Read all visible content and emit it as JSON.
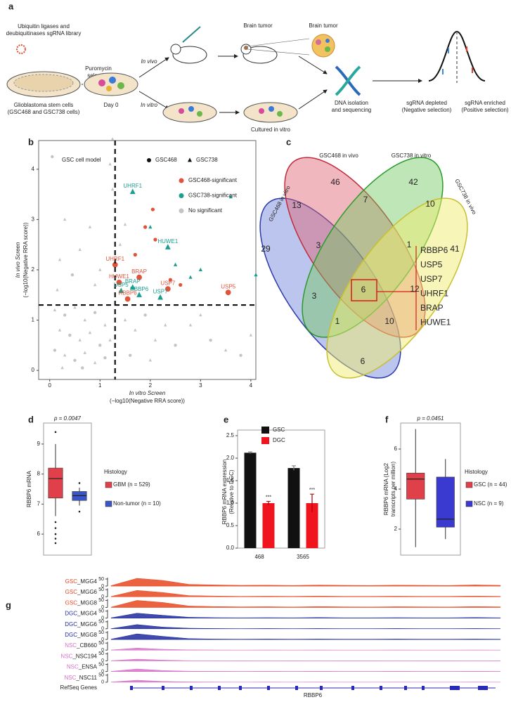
{
  "panel_labels": [
    "a",
    "b",
    "c",
    "d",
    "e",
    "f",
    "g"
  ],
  "a": {
    "library": [
      "Ubiquitin ligases and",
      "deubiquitinases sgRNA library"
    ],
    "cells": [
      "Glioblastoma stem cells",
      "(GSC468 and GSC738 cells)"
    ],
    "puromycin": [
      "Puromycin",
      "selection"
    ],
    "day0": "Day 0",
    "invivo": "In vivo",
    "invitro": "In vitro",
    "tumor1": "Brain tumor",
    "tumor2": "Brain tumor",
    "cultured": "Cultured in vitro",
    "dna": [
      "DNA isolation",
      "and sequencing"
    ],
    "depleted": [
      "sgRNA depleted",
      "(Negative selection)"
    ],
    "enriched": [
      "sgRNA enriched",
      "(Positive selection)"
    ]
  },
  "b": {
    "type": "scatter",
    "legend_title": "GSC cell model",
    "markers": [
      {
        "name": "GSC468",
        "shape": "circle"
      },
      {
        "name": "GSC738",
        "shape": "triangle"
      }
    ],
    "classes": [
      {
        "name": "GSC468-significant",
        "color": "#e0533a"
      },
      {
        "name": "GSC738-significant",
        "color": "#1a9e8f"
      },
      {
        "name": "No significant",
        "color": "#c4c4c4"
      }
    ],
    "xlabel": [
      "In vitro Screen",
      "(−log10(Negative RRA score))"
    ],
    "ylabel": [
      "In vivo Screen",
      "(−log10(Negative RRA score))"
    ],
    "xlim": [
      -0.22,
      4.1
    ],
    "ylim": [
      -0.18,
      4.57
    ],
    "xticks": [
      0,
      1,
      2,
      3,
      4
    ],
    "yticks": [
      0,
      1,
      2,
      3,
      4
    ],
    "threshold": 1.3,
    "points": [
      {
        "x": 1.65,
        "y": 3.55,
        "s": 1,
        "c": 1,
        "label": "UHRF1"
      },
      {
        "x": 2.35,
        "y": 2.45,
        "s": 1,
        "c": 1,
        "label": "HUWE1"
      },
      {
        "x": 1.3,
        "y": 2.1,
        "s": 0,
        "c": 0,
        "label": "UHRF1"
      },
      {
        "x": 1.38,
        "y": 1.75,
        "s": 0,
        "c": 0,
        "label": "HUWE1"
      },
      {
        "x": 1.78,
        "y": 1.85,
        "s": 0,
        "c": 0,
        "label": "BRAP"
      },
      {
        "x": 1.65,
        "y": 1.65,
        "s": 1,
        "c": 1,
        "label": "BRAP"
      },
      {
        "x": 1.42,
        "y": 1.58,
        "s": 1,
        "c": 1,
        "label": "USP5"
      },
      {
        "x": 1.78,
        "y": 1.5,
        "s": 1,
        "c": 1,
        "label": "RBBP6"
      },
      {
        "x": 2.35,
        "y": 1.62,
        "s": 0,
        "c": 0,
        "label": "USP7"
      },
      {
        "x": 3.55,
        "y": 1.55,
        "s": 0,
        "c": 0,
        "label": "USP5"
      },
      {
        "x": 1.55,
        "y": 1.42,
        "s": 0,
        "c": 0,
        "label": "RBBP6"
      },
      {
        "x": 2.2,
        "y": 1.45,
        "s": 1,
        "c": 1,
        "label": "USP7"
      },
      {
        "x": 1.9,
        "y": 2.85,
        "s": 0,
        "c": 0
      },
      {
        "x": 2.05,
        "y": 3.2,
        "s": 0,
        "c": 0
      },
      {
        "x": 1.7,
        "y": 2.3,
        "s": 0,
        "c": 0
      },
      {
        "x": 2.4,
        "y": 1.8,
        "s": 0,
        "c": 0
      },
      {
        "x": 2.6,
        "y": 1.7,
        "s": 0,
        "c": 0
      },
      {
        "x": 2.1,
        "y": 2.6,
        "s": 0,
        "c": 0
      },
      {
        "x": 3.6,
        "y": 3.45,
        "s": 1,
        "c": 1
      },
      {
        "x": 2.0,
        "y": 2.85,
        "s": 1,
        "c": 1
      },
      {
        "x": 2.5,
        "y": 2.1,
        "s": 1,
        "c": 1
      },
      {
        "x": 4.1,
        "y": 1.9,
        "s": 1,
        "c": 1
      },
      {
        "x": 3.0,
        "y": 2.0,
        "s": 1,
        "c": 1
      },
      {
        "x": 2.8,
        "y": 1.85,
        "s": 1,
        "c": 1
      },
      {
        "x": 0.05,
        "y": 4.25,
        "s": 0,
        "c": 2
      },
      {
        "x": 1.25,
        "y": 4.6,
        "s": 1,
        "c": 2
      },
      {
        "x": 1.2,
        "y": 4.1,
        "s": 1,
        "c": 2
      },
      {
        "x": 1.25,
        "y": 3.6,
        "s": 1,
        "c": 2
      },
      {
        "x": 0.3,
        "y": 3.0,
        "s": 1,
        "c": 2
      },
      {
        "x": 0.8,
        "y": 2.85,
        "s": 1,
        "c": 2
      },
      {
        "x": 0.6,
        "y": 2.4,
        "s": 1,
        "c": 2
      },
      {
        "x": 0.2,
        "y": 2.2,
        "s": 1,
        "c": 2
      },
      {
        "x": 1.0,
        "y": 2.0,
        "s": 1,
        "c": 2
      },
      {
        "x": 0.45,
        "y": 1.9,
        "s": 0,
        "c": 2
      },
      {
        "x": 0.9,
        "y": 1.7,
        "s": 1,
        "c": 2
      },
      {
        "x": 0.15,
        "y": 1.6,
        "s": 1,
        "c": 2
      },
      {
        "x": 0.1,
        "y": 1.2,
        "s": 1,
        "c": 2
      },
      {
        "x": 0.3,
        "y": 1.1,
        "s": 0,
        "c": 2
      },
      {
        "x": 0.5,
        "y": 1.25,
        "s": 1,
        "c": 2
      },
      {
        "x": 0.7,
        "y": 1.0,
        "s": 1,
        "c": 2
      },
      {
        "x": 0.9,
        "y": 1.15,
        "s": 0,
        "c": 2
      },
      {
        "x": 1.1,
        "y": 0.9,
        "s": 1,
        "c": 2
      },
      {
        "x": 0.2,
        "y": 0.8,
        "s": 1,
        "c": 2
      },
      {
        "x": 0.4,
        "y": 0.7,
        "s": 0,
        "c": 2
      },
      {
        "x": 0.6,
        "y": 0.6,
        "s": 1,
        "c": 2
      },
      {
        "x": 0.8,
        "y": 0.75,
        "s": 1,
        "c": 2
      },
      {
        "x": 1.0,
        "y": 0.5,
        "s": 0,
        "c": 2
      },
      {
        "x": 1.2,
        "y": 0.6,
        "s": 1,
        "c": 2
      },
      {
        "x": 0.1,
        "y": 0.4,
        "s": 0,
        "c": 2
      },
      {
        "x": 0.3,
        "y": 0.3,
        "s": 1,
        "c": 2
      },
      {
        "x": 0.5,
        "y": 0.2,
        "s": 0,
        "c": 2
      },
      {
        "x": 0.7,
        "y": 0.35,
        "s": 1,
        "c": 2
      },
      {
        "x": 0.9,
        "y": 0.15,
        "s": 1,
        "c": 2
      },
      {
        "x": 1.1,
        "y": 0.25,
        "s": 0,
        "c": 2
      },
      {
        "x": 0.25,
        "y": 0.05,
        "s": 1,
        "c": 2
      },
      {
        "x": 0.65,
        "y": 0.05,
        "s": 0,
        "c": 2
      },
      {
        "x": 1.5,
        "y": 1.0,
        "s": 1,
        "c": 2
      },
      {
        "x": 1.7,
        "y": 0.8,
        "s": 1,
        "c": 2
      },
      {
        "x": 1.9,
        "y": 1.1,
        "s": 0,
        "c": 2
      },
      {
        "x": 2.1,
        "y": 0.6,
        "s": 1,
        "c": 2
      },
      {
        "x": 2.3,
        "y": 0.9,
        "s": 1,
        "c": 2
      },
      {
        "x": 2.5,
        "y": 0.5,
        "s": 0,
        "c": 2
      },
      {
        "x": 2.8,
        "y": 0.9,
        "s": 1,
        "c": 2
      },
      {
        "x": 3.0,
        "y": 1.1,
        "s": 1,
        "c": 2
      },
      {
        "x": 3.2,
        "y": 0.6,
        "s": 0,
        "c": 2
      },
      {
        "x": 3.5,
        "y": 0.4,
        "s": 1,
        "c": 2
      },
      {
        "x": 3.8,
        "y": 0.3,
        "s": 0,
        "c": 2
      },
      {
        "x": 4.0,
        "y": 0.7,
        "s": 1,
        "c": 2
      },
      {
        "x": 1.6,
        "y": 0.3,
        "s": 0,
        "c": 2
      },
      {
        "x": 2.0,
        "y": 0.2,
        "s": 1,
        "c": 2
      },
      {
        "x": 1.4,
        "y": 2.5,
        "s": 1,
        "c": 2
      },
      {
        "x": 1.5,
        "y": 2.9,
        "s": 1,
        "c": 2
      }
    ]
  },
  "c": {
    "sets": [
      "GSC468 in vitro",
      "GSC468 in vivo",
      "GSC738 in vitro",
      "GSC738 in vivo"
    ],
    "counts": [
      46,
      42,
      13,
      7,
      10,
      29,
      3,
      1,
      41,
      3,
      6,
      12,
      1,
      10,
      6
    ],
    "genes": [
      "RBBP6",
      "USP5",
      "USP7",
      "UHRF1",
      "BRAP",
      "HUWE1"
    ]
  },
  "d": {
    "type": "box",
    "p": "p = 0.0047",
    "ylabel": "RBBP6 mRNA",
    "ylim": [
      5.3,
      9.7
    ],
    "yticks": [
      6,
      7,
      8,
      9
    ],
    "legend_title": "Histology",
    "boxes": [
      {
        "name": "GBM (n = 529)",
        "color": "#e0404a",
        "q1": 7.2,
        "median": 7.85,
        "q3": 8.2,
        "whisker_low": 6.6,
        "whisker_high": 9.0,
        "outliers": [
          9.4,
          6.4,
          6.2,
          6.0,
          5.85,
          5.7
        ]
      },
      {
        "name": "Non-tumor (n = 10)",
        "color": "#3a55c8",
        "q1": 7.12,
        "median": 7.28,
        "q3": 7.42,
        "whisker_low": 6.95,
        "whisker_high": 7.55,
        "outliers": [
          7.7,
          6.75
        ]
      }
    ]
  },
  "e": {
    "type": "bar",
    "ylabel": [
      "RBBP6 mRNA expression",
      "(Relative to DGC)"
    ],
    "categories": [
      "468",
      "3565"
    ],
    "series": [
      {
        "name": "GSC",
        "color": "#111111",
        "values": [
          2.12,
          1.78
        ],
        "errors": [
          0.02,
          0.05
        ]
      },
      {
        "name": "DGC",
        "color": "#f0141e",
        "values": [
          1.0,
          1.0
        ],
        "errors": [
          0.04,
          0.2
        ]
      }
    ],
    "annotations": [
      "***",
      "***"
    ],
    "ylim": [
      0,
      2.5
    ],
    "yticks": [
      {
        "value": 0,
        "label": "0.0"
      },
      {
        "value": 0.5,
        "label": "0.5"
      },
      {
        "value": 1,
        "label": "1.0"
      },
      {
        "value": 1.5,
        "label": "1.5"
      },
      {
        "value": 2,
        "label": "2.0"
      },
      {
        "value": 2.5,
        "label": "2.5"
      }
    ]
  },
  "f": {
    "type": "box",
    "p": "p = 0.0451",
    "ylabel": [
      "RBBP6 mRNA (Log2",
      "transcripts per million)"
    ],
    "ylim": [
      0.7,
      7.3
    ],
    "yticks": [
      2,
      4,
      6
    ],
    "legend_title": "Histology",
    "boxes": [
      {
        "name": "GSC (n = 44)",
        "color": "#e0404a",
        "q1": 3.5,
        "median": 4.5,
        "q3": 4.8,
        "whisker_low": 1.1,
        "whisker_high": 7.0,
        "outliers": []
      },
      {
        "name": "NSC (n = 9)",
        "color": "#3a3ad0",
        "q1": 2.1,
        "median": 2.5,
        "q3": 4.6,
        "whisker_low": 1.5,
        "whisker_high": 5.5,
        "outliers": []
      }
    ]
  },
  "g": {
    "groups": [
      {
        "name": "GSC",
        "color": "#e8461e"
      },
      {
        "name": "DGC",
        "color": "#1f2a9e"
      },
      {
        "name": "NSC",
        "color": "#d870c8"
      }
    ],
    "ylim": [
      0,
      60
    ],
    "yticks": [
      0,
      50
    ],
    "tracks": [
      {
        "g": 0,
        "sample": "_MGG4",
        "signal": [
          3,
          55,
          40,
          12,
          8,
          5,
          6,
          4,
          7,
          5,
          4,
          6,
          5,
          4,
          8,
          5
        ]
      },
      {
        "g": 0,
        "sample": "_MGG6",
        "signal": [
          2,
          45,
          30,
          8,
          5,
          3,
          4,
          3,
          5,
          3,
          3,
          4,
          3,
          3,
          5,
          3
        ]
      },
      {
        "g": 0,
        "sample": "_MGG8",
        "signal": [
          2,
          50,
          35,
          10,
          6,
          4,
          5,
          3,
          6,
          4,
          3,
          5,
          4,
          3,
          6,
          4
        ]
      },
      {
        "g": 1,
        "sample": "_MGG4",
        "signal": [
          2,
          35,
          20,
          6,
          3,
          2,
          3,
          2,
          4,
          2,
          2,
          3,
          2,
          2,
          4,
          2
        ]
      },
      {
        "g": 1,
        "sample": "_MGG6",
        "signal": [
          1,
          30,
          12,
          4,
          2,
          1,
          2,
          1,
          2,
          1,
          1,
          2,
          1,
          1,
          2,
          1
        ]
      },
      {
        "g": 1,
        "sample": "_MGG8",
        "signal": [
          2,
          40,
          22,
          6,
          3,
          2,
          3,
          2,
          3,
          2,
          2,
          3,
          2,
          2,
          3,
          2
        ]
      },
      {
        "g": 2,
        "sample": "_CB660",
        "signal": [
          1,
          15,
          6,
          2,
          1,
          0,
          1,
          0,
          1,
          0,
          0,
          1,
          0,
          0,
          1,
          0
        ]
      },
      {
        "g": 2,
        "sample": "_NSC194",
        "signal": [
          1,
          12,
          5,
          1,
          1,
          0,
          1,
          0,
          1,
          0,
          0,
          1,
          0,
          0,
          1,
          0
        ]
      },
      {
        "g": 2,
        "sample": "_ENSA",
        "signal": [
          1,
          18,
          7,
          2,
          1,
          0,
          1,
          0,
          1,
          0,
          0,
          1,
          0,
          0,
          1,
          0
        ]
      },
      {
        "g": 2,
        "sample": "_NSC11",
        "signal": [
          1,
          14,
          5,
          2,
          1,
          0,
          1,
          0,
          1,
          0,
          0,
          1,
          0,
          0,
          1,
          0
        ]
      }
    ],
    "genes_label": "RefSeq Genes",
    "gene": "RBBP6"
  }
}
